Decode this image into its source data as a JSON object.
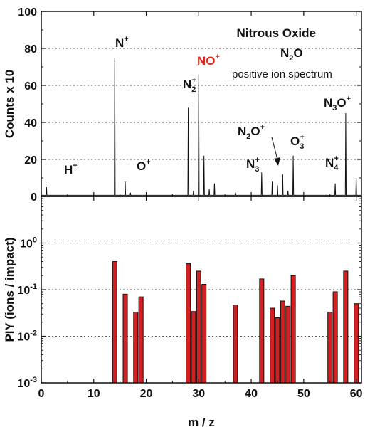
{
  "chart_data": [
    {
      "type": "line",
      "ylabel": "Counts x 10",
      "ylim": [
        0,
        100
      ],
      "xlim": [
        0,
        61
      ],
      "yticks": [
        "0",
        "20",
        "40",
        "60",
        "80",
        "100"
      ],
      "grid": "horizontal dotted",
      "annotations": [
        {
          "base": "Nitrous Oxide",
          "sup": "",
          "sub": "",
          "tail": "",
          "color": "#111111",
          "bold": true
        },
        {
          "base": "N",
          "sub": "2",
          "tail": "O",
          "sup": "",
          "color": "#111111",
          "bold": true
        },
        {
          "base": "positive ion spectrum",
          "sup": "",
          "sub": "",
          "tail": "",
          "color": "#111111",
          "bold": false
        },
        {
          "base": "N",
          "sup": "+",
          "sub": "",
          "tail": "",
          "color": "#111111",
          "bold": true
        },
        {
          "base": "NO",
          "sup": "+",
          "sub": "",
          "tail": "",
          "color": "#e8261c",
          "bold": true
        },
        {
          "base": "N",
          "sub": "2",
          "sup": "+",
          "tail": "",
          "color": "#111111",
          "bold": true
        },
        {
          "base": "H",
          "sup": "+",
          "sub": "",
          "tail": "",
          "color": "#111111",
          "bold": true
        },
        {
          "base": "O",
          "sup": "+",
          "sub": "",
          "tail": "",
          "color": "#111111",
          "bold": true
        },
        {
          "base": "N",
          "sub": "2",
          "tail": "O",
          "sup": "+",
          "color": "#111111",
          "bold": true
        },
        {
          "base": "N",
          "sub": "3",
          "sup": "+",
          "tail": "",
          "color": "#111111",
          "bold": true
        },
        {
          "base": "O",
          "sub": "3",
          "sup": "+",
          "tail": "",
          "color": "#111111",
          "bold": true
        },
        {
          "base": "N",
          "sub": "4",
          "sup": "+",
          "tail": "",
          "color": "#111111",
          "bold": true
        },
        {
          "base": "N",
          "sub": "3",
          "tail": "O",
          "sup": "+",
          "color": "#111111",
          "bold": true
        }
      ],
      "peaks": [
        {
          "x": 1,
          "y": 5
        },
        {
          "x": 14,
          "y": 75
        },
        {
          "x": 16,
          "y": 8
        },
        {
          "x": 17,
          "y": 2
        },
        {
          "x": 28,
          "y": 48
        },
        {
          "x": 29,
          "y": 3
        },
        {
          "x": 30,
          "y": 66
        },
        {
          "x": 31,
          "y": 22
        },
        {
          "x": 32,
          "y": 4
        },
        {
          "x": 33,
          "y": 7
        },
        {
          "x": 37,
          "y": 2
        },
        {
          "x": 42,
          "y": 13
        },
        {
          "x": 44,
          "y": 8
        },
        {
          "x": 45,
          "y": 6
        },
        {
          "x": 46,
          "y": 12
        },
        {
          "x": 47,
          "y": 3
        },
        {
          "x": 48,
          "y": 22
        },
        {
          "x": 56,
          "y": 7
        },
        {
          "x": 58,
          "y": 45
        },
        {
          "x": 60,
          "y": 10
        }
      ]
    },
    {
      "type": "bar",
      "xlabel": "m / z",
      "ylabel": "PIY (ions / impact)",
      "yscale": "log",
      "ylim": [
        0.001,
        10
      ],
      "xlim": [
        0,
        61
      ],
      "xticks": [
        "0",
        "10",
        "20",
        "30",
        "40",
        "50",
        "60"
      ],
      "yticks": [
        {
          "base": "10",
          "exp": "-3"
        },
        {
          "base": "10",
          "exp": "-2"
        },
        {
          "base": "10",
          "exp": "-1"
        },
        {
          "base": "10",
          "exp": "0"
        }
      ],
      "grid": "horizontal dotted",
      "bar_color": "#d42020",
      "x": [
        14,
        16,
        18,
        19,
        28,
        29,
        30,
        31,
        37,
        42,
        44,
        45,
        46,
        47,
        48,
        55,
        56,
        58,
        60
      ],
      "values": [
        0.4,
        0.08,
        0.033,
        0.07,
        0.36,
        0.034,
        0.25,
        0.13,
        0.047,
        0.17,
        0.04,
        0.025,
        0.057,
        0.044,
        0.2,
        0.033,
        0.09,
        0.25,
        0.05
      ]
    }
  ]
}
